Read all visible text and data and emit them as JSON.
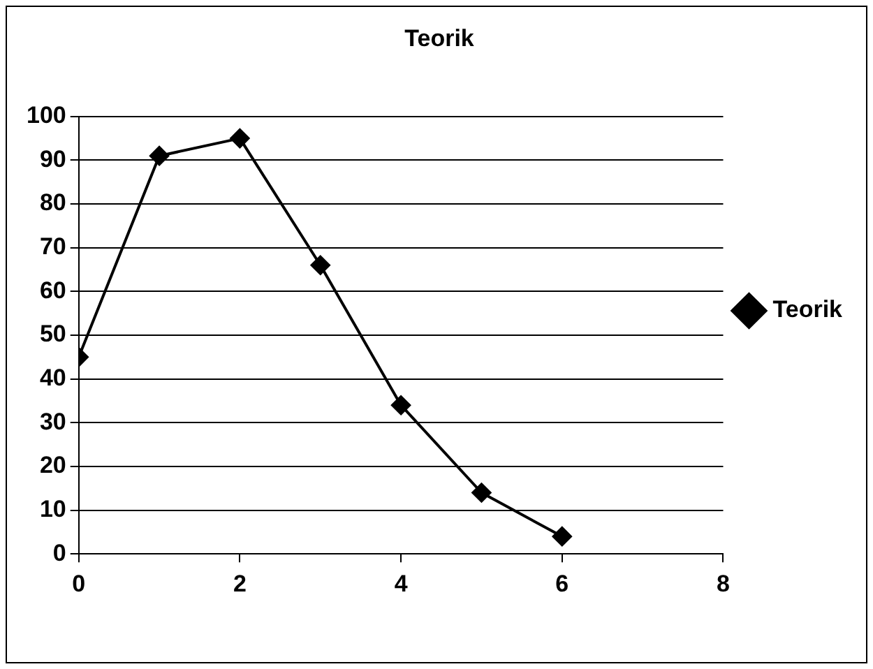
{
  "chart_data": {
    "type": "line",
    "title": "Teorik",
    "x": [
      0,
      1,
      2,
      3,
      4,
      5,
      6
    ],
    "series": [
      {
        "name": "Teorik",
        "color": "#000000",
        "values": [
          45,
          91,
          95,
          66,
          34,
          14,
          4
        ]
      }
    ],
    "xlim": [
      0,
      8
    ],
    "xticks": [
      0,
      2,
      4,
      6,
      8
    ],
    "ylim": [
      0,
      100
    ],
    "yticks": [
      0,
      10,
      20,
      30,
      40,
      50,
      60,
      70,
      80,
      90,
      100
    ],
    "grid": "y",
    "legend": "right",
    "marker": "diamond",
    "line_style": "solid"
  }
}
